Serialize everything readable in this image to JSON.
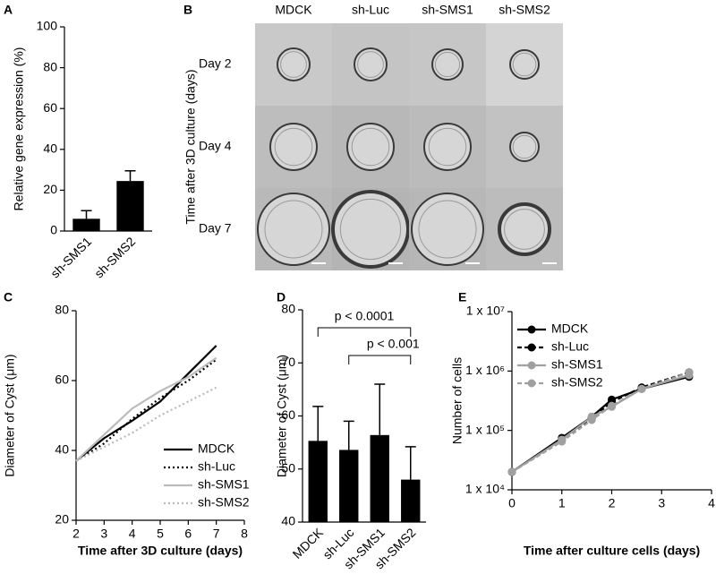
{
  "chart_data": [
    {
      "type": "bar",
      "panel": "A",
      "ylabel": "Relative gene expression (%)",
      "categories": [
        "sh-SMS1",
        "sh-SMS2"
      ],
      "values": [
        6,
        24.5
      ],
      "errors": [
        4,
        5
      ],
      "color": "#000000",
      "ylim": [
        0,
        100
      ],
      "yticks": [
        0,
        20,
        40,
        60,
        80,
        100
      ]
    },
    {
      "type": "line",
      "panel": "C",
      "ylabel": "Diameter of Cyst (μm)",
      "xlabel": "Time after 3D culture (days)",
      "x": [
        2,
        3,
        4,
        5,
        6,
        7
      ],
      "series": [
        {
          "name": "MDCK",
          "color": "#000000",
          "dash": "solid",
          "values": [
            37,
            43.5,
            48.5,
            54,
            62,
            70
          ]
        },
        {
          "name": "sh-Luc",
          "color": "#000000",
          "dash": "dotted",
          "values": [
            37,
            42,
            49,
            55,
            60,
            66
          ]
        },
        {
          "name": "sh-SMS1",
          "color": "#bbbbbb",
          "dash": "solid",
          "values": [
            37,
            44.5,
            52,
            57,
            61,
            66.5
          ]
        },
        {
          "name": "sh-SMS2",
          "color": "#bbbbbb",
          "dash": "dotted",
          "values": [
            37,
            41,
            45,
            50,
            54,
            58
          ]
        }
      ],
      "xlim": [
        2,
        8
      ],
      "xticks": [
        2,
        3,
        4,
        5,
        6,
        7,
        8
      ],
      "ylim": [
        20,
        80
      ],
      "yticks": [
        20,
        40,
        60,
        80
      ],
      "legend": "lower right"
    },
    {
      "type": "bar",
      "panel": "D",
      "ylabel": "Diameter of Cyst (μm)",
      "categories": [
        "MDCK",
        "sh-Luc",
        "sh-SMS1",
        "sh-SMS2"
      ],
      "values": [
        55.3,
        53.6,
        56.4,
        48
      ],
      "errors": [
        6.5,
        5.4,
        9.6,
        6.2
      ],
      "color": "#000000",
      "ylim": [
        40,
        80
      ],
      "yticks": [
        40,
        50,
        60,
        70,
        80
      ],
      "annotations": [
        {
          "text": "p < 0.0001",
          "from": 0,
          "to": 3
        },
        {
          "text": "p < 0.001",
          "from": 1,
          "to": 3
        }
      ]
    },
    {
      "type": "line",
      "panel": "E",
      "ylabel": "Number of cells",
      "xlabel": "Time after culture cells (days)",
      "log": true,
      "markers": true,
      "x": [
        0,
        1,
        1.6,
        2,
        2.6,
        3.55
      ],
      "series": [
        {
          "name": "MDCK",
          "color": "#000000",
          "dash": "solid",
          "values": [
            20000,
            75000,
            170000,
            330000,
            500000,
            800000
          ]
        },
        {
          "name": "sh-Luc",
          "color": "#000000",
          "dash": "dashed",
          "values": [
            20000,
            70000,
            160000,
            300000,
            530000,
            950000
          ]
        },
        {
          "name": "sh-SMS1",
          "color": "#a0a0a0",
          "dash": "solid",
          "values": [
            20000,
            70000,
            170000,
            250000,
            500000,
            850000
          ]
        },
        {
          "name": "sh-SMS2",
          "color": "#a0a0a0",
          "dash": "dashed",
          "values": [
            20000,
            65000,
            150000,
            260000,
            500000,
            950000
          ]
        }
      ],
      "xlim": [
        0,
        4
      ],
      "xticks": [
        0,
        1,
        2,
        3,
        4
      ],
      "ylim": [
        10000,
        10000000
      ],
      "yticks": [
        {
          "value": 10000,
          "label": "1 x 10⁴"
        },
        {
          "value": 100000,
          "label": "1 x 10⁵"
        },
        {
          "value": 1000000,
          "label": "1 x 10⁶"
        },
        {
          "value": 10000000,
          "label": "1 x 10⁷"
        }
      ],
      "legend": "upper left"
    }
  ],
  "image_panel": {
    "panel": "B",
    "ylabel": "Time after 3D culture (days)",
    "columns": [
      "MDCK",
      "sh-Luc",
      "sh-SMS1",
      "sh-SMS2"
    ],
    "rows": [
      "Day 2",
      "Day 4",
      "Day 7"
    ]
  }
}
